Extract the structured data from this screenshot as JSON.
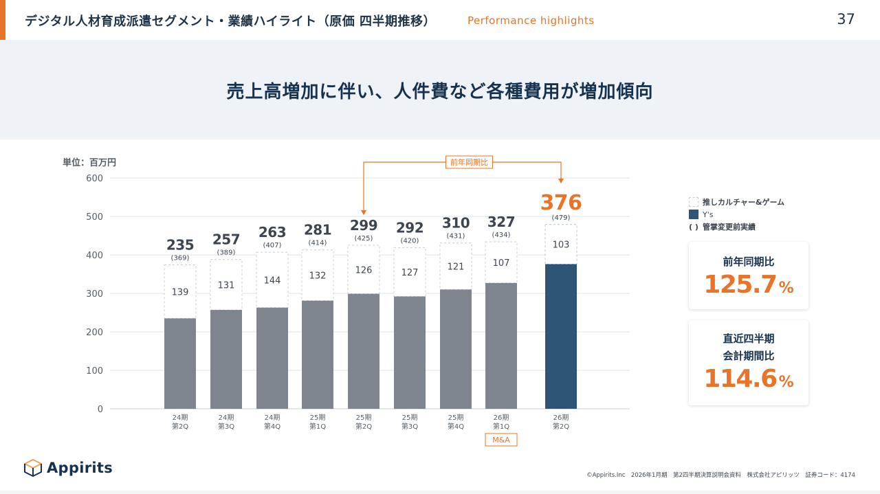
{
  "header": {
    "title": "デジタル人材育成派遣セグメント・業績ハイライト（原価 四半期推移）",
    "subtitle": "Performance highlights",
    "page_number": "37"
  },
  "banner": {
    "headline": "売上高増加に伴い、人件費など各種費用が増加傾向"
  },
  "colors": {
    "accent": "#e8742a",
    "navy": "#16324f",
    "bar_gray": "#7f858e",
    "bar_blue": "#2e5575",
    "dashed": "#c8ccd1"
  },
  "chart_data": {
    "type": "bar",
    "unit_label": "単位：百万円",
    "ylim": [
      0,
      600
    ],
    "yticks": [
      0,
      100,
      200,
      300,
      400,
      500,
      600
    ],
    "grid": true,
    "categories": [
      [
        "24期",
        "第2Q"
      ],
      [
        "24期",
        "第3Q"
      ],
      [
        "24期",
        "第4Q"
      ],
      [
        "25期",
        "第1Q"
      ],
      [
        "25期",
        "第2Q"
      ],
      [
        "25期",
        "第3Q"
      ],
      [
        "25期",
        "第4Q"
      ],
      [
        "26期",
        "第1Q"
      ],
      [
        "26期",
        "第2Q"
      ]
    ],
    "series": [
      {
        "name": "Y's",
        "values": [
          235,
          257,
          263,
          281,
          299,
          292,
          310,
          327,
          376
        ]
      },
      {
        "name": "推しカルチャー&ゲーム",
        "values": [
          139,
          131,
          144,
          132,
          126,
          127,
          121,
          107,
          103
        ]
      }
    ],
    "pre_change_totals": [
      "(369)",
      "(389)",
      "(407)",
      "(414)",
      "(425)",
      "(420)",
      "(431)",
      "(434)",
      "(479)"
    ],
    "highlight_index": 8,
    "annotations": {
      "yoy_label": "前年同期比",
      "yoy_from_index": 4,
      "yoy_to_index": 8,
      "ma_label": "M&A",
      "ma_index": 7
    },
    "legend": [
      {
        "label": "推しカルチャー&ゲーム",
        "style": "dashed"
      },
      {
        "label": "Y's",
        "style": "solid"
      },
      {
        "label": "管掌変更前実績",
        "style": "paren",
        "symbol": "( )"
      }
    ],
    "legend_position": "right"
  },
  "cards": [
    {
      "label_lines": [
        "前年同期比"
      ],
      "value": "125.7",
      "unit": "%"
    },
    {
      "label_lines": [
        "直近四半期",
        "会計期間比"
      ],
      "value": "114.6",
      "unit": "%"
    }
  ],
  "footer": {
    "logo_text": "Appirits",
    "text": "©Appirits.Inc　2026年1月期　第2四半期決算説明会資料　株式会社アピリッツ　証券コード：4174"
  }
}
